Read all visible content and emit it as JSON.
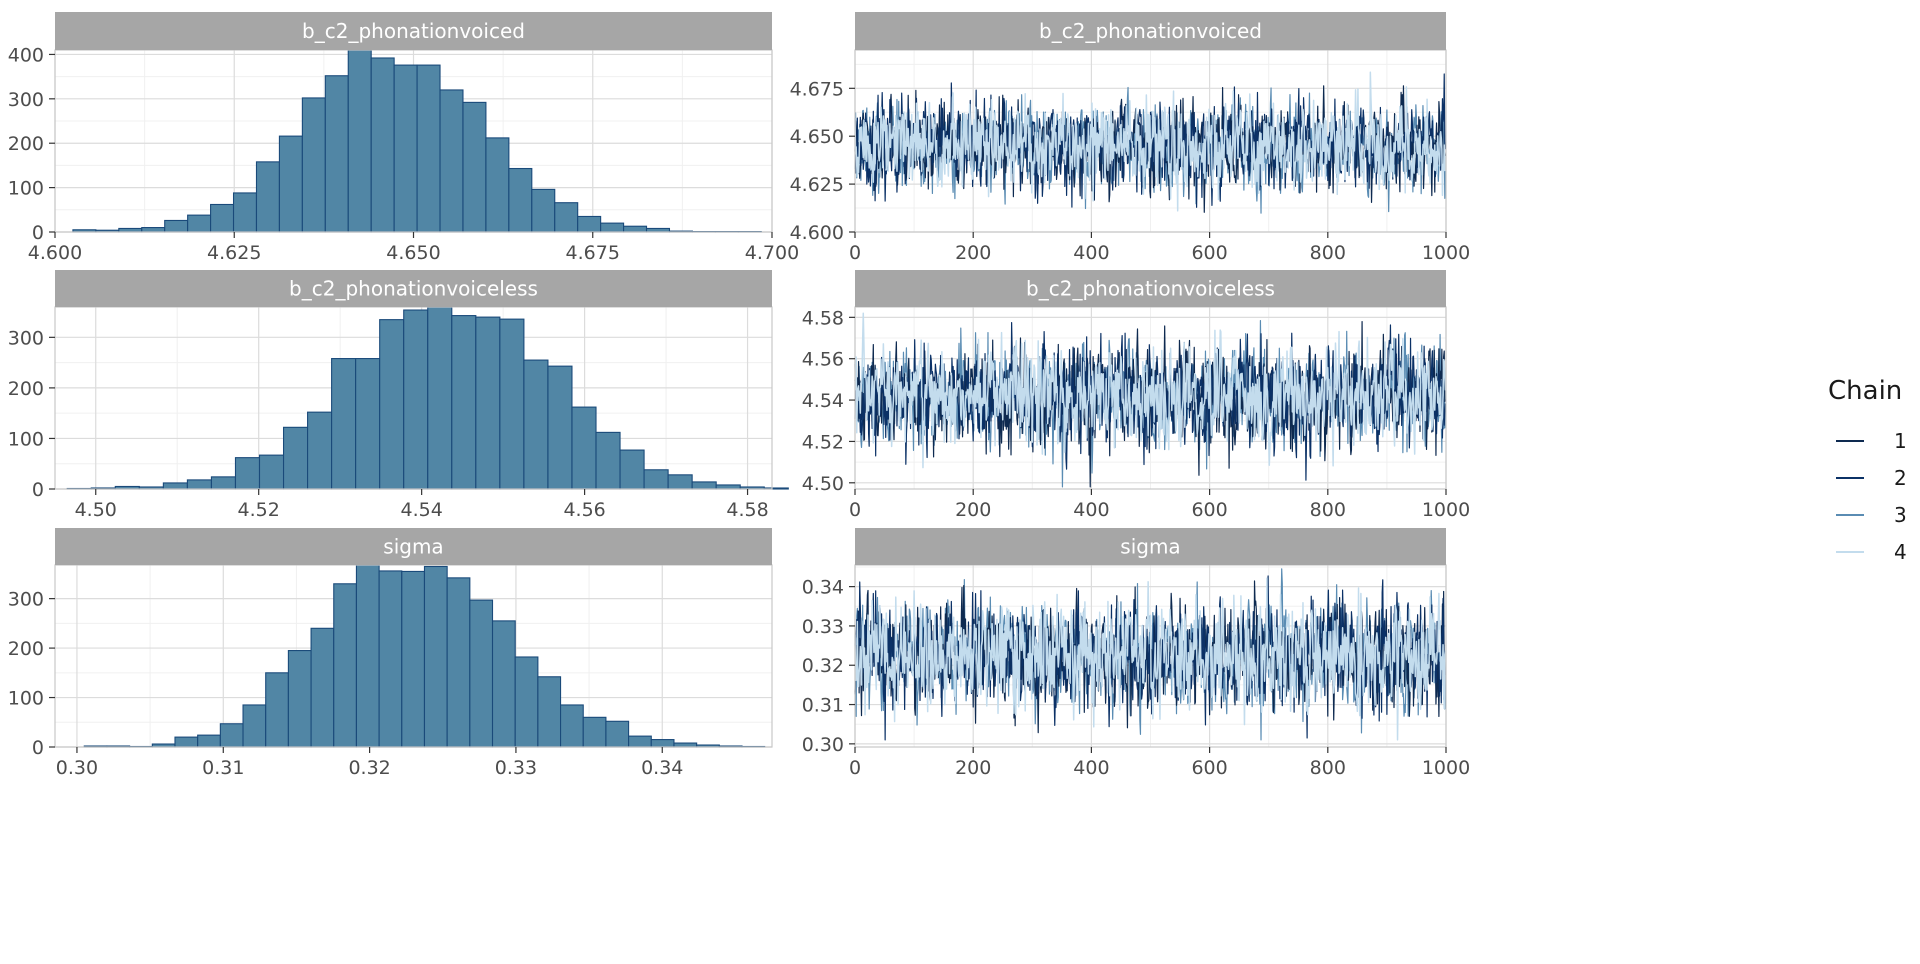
{
  "legend": {
    "title": "Chain",
    "placement": "right",
    "entries": [
      "1",
      "2",
      "3",
      "4"
    ]
  },
  "colors": {
    "strip": "#a6a6a6",
    "hist_fill": "#5186a5",
    "hist_border": "#1a4a7a",
    "chain": [
      "#0e2a50",
      "#0b3166",
      "#5a8cb3",
      "#c3dced"
    ]
  },
  "chart_data": [
    {
      "type": "bar",
      "title": "b_c2_phonationvoiced",
      "grid": true,
      "xlim": [
        4.6,
        4.7
      ],
      "ylim": [
        0,
        410
      ],
      "x_ticks": [
        "4.600",
        "4.625",
        "4.650",
        "4.675",
        "4.700"
      ],
      "y_ticks": [
        "0",
        "100",
        "200",
        "300",
        "400"
      ],
      "bin_start": 4.6025,
      "bin_width": 0.0032,
      "values": [
        5,
        4,
        8,
        10,
        26,
        38,
        62,
        88,
        158,
        216,
        302,
        352,
        410,
        392,
        376,
        376,
        320,
        292,
        212,
        143,
        96,
        66,
        35,
        20,
        13,
        8,
        2,
        1,
        1,
        1
      ]
    },
    {
      "type": "line",
      "title": "b_c2_phonationvoiced",
      "grid": true,
      "xlim": [
        0,
        1000
      ],
      "ylim": [
        4.6,
        4.695
      ],
      "x_ticks": [
        "0",
        "200",
        "400",
        "600",
        "800",
        "1000"
      ],
      "y_ticks": [
        "4.600",
        "4.625",
        "4.650",
        "4.675"
      ],
      "n_iterations": 1000,
      "series_summary": {
        "mean": 4.645,
        "sd": 0.011,
        "min": 4.603,
        "max": 4.693
      },
      "series": [
        {
          "name": "1",
          "seed": 11
        },
        {
          "name": "2",
          "seed": 23
        },
        {
          "name": "3",
          "seed": 37
        },
        {
          "name": "4",
          "seed": 51
        }
      ]
    },
    {
      "type": "bar",
      "title": "b_c2_phonationvoiceless",
      "grid": true,
      "xlim": [
        4.495,
        4.583
      ],
      "ylim": [
        0,
        360
      ],
      "x_ticks": [
        "4.50",
        "4.52",
        "4.54",
        "4.56",
        "4.58"
      ],
      "y_ticks": [
        "0",
        "100",
        "200",
        "300"
      ],
      "bin_start": 4.4965,
      "bin_width": 0.00295,
      "values": [
        1,
        2,
        5,
        4,
        12,
        18,
        24,
        62,
        67,
        122,
        152,
        258,
        258,
        335,
        354,
        362,
        343,
        340,
        336,
        255,
        243,
        162,
        112,
        77,
        38,
        28,
        14,
        8,
        4,
        2
      ]
    },
    {
      "type": "line",
      "title": "b_c2_phonationvoiceless",
      "grid": true,
      "xlim": [
        0,
        1000
      ],
      "ylim": [
        4.497,
        4.585
      ],
      "x_ticks": [
        "0",
        "200",
        "400",
        "600",
        "800",
        "1000"
      ],
      "y_ticks": [
        "4.50",
        "4.52",
        "4.54",
        "4.56",
        "4.58"
      ],
      "n_iterations": 1000,
      "series_summary": {
        "mean": 4.542,
        "sd": 0.012,
        "min": 4.498,
        "max": 4.582
      },
      "series": [
        {
          "name": "1",
          "seed": 61
        },
        {
          "name": "2",
          "seed": 73
        },
        {
          "name": "3",
          "seed": 89
        },
        {
          "name": "4",
          "seed": 97
        }
      ]
    },
    {
      "type": "bar",
      "title": "sigma",
      "grid": true,
      "xlim": [
        0.2985,
        0.3475
      ],
      "ylim": [
        0,
        368
      ],
      "x_ticks": [
        "0.30",
        "0.31",
        "0.32",
        "0.33",
        "0.34"
      ],
      "y_ticks": [
        "0",
        "100",
        "200",
        "300"
      ],
      "bin_start": 0.3005,
      "bin_width": 0.00155,
      "values": [
        2,
        2,
        1,
        6,
        20,
        24,
        47,
        85,
        150,
        195,
        240,
        330,
        368,
        356,
        355,
        365,
        342,
        297,
        255,
        182,
        142,
        85,
        60,
        52,
        22,
        15,
        8,
        4,
        2,
        1
      ]
    },
    {
      "type": "line",
      "title": "sigma",
      "grid": true,
      "xlim": [
        0,
        1000
      ],
      "ylim": [
        0.2992,
        0.3455
      ],
      "x_ticks": [
        "0",
        "200",
        "400",
        "600",
        "800",
        "1000"
      ],
      "y_ticks": [
        "0.30",
        "0.31",
        "0.32",
        "0.33",
        "0.34"
      ],
      "n_iterations": 1000,
      "series_summary": {
        "mean": 0.3225,
        "sd": 0.0065,
        "min": 0.301,
        "max": 0.345
      },
      "series": [
        {
          "name": "1",
          "seed": 101
        },
        {
          "name": "2",
          "seed": 113
        },
        {
          "name": "3",
          "seed": 127
        },
        {
          "name": "4",
          "seed": 131
        }
      ]
    }
  ]
}
